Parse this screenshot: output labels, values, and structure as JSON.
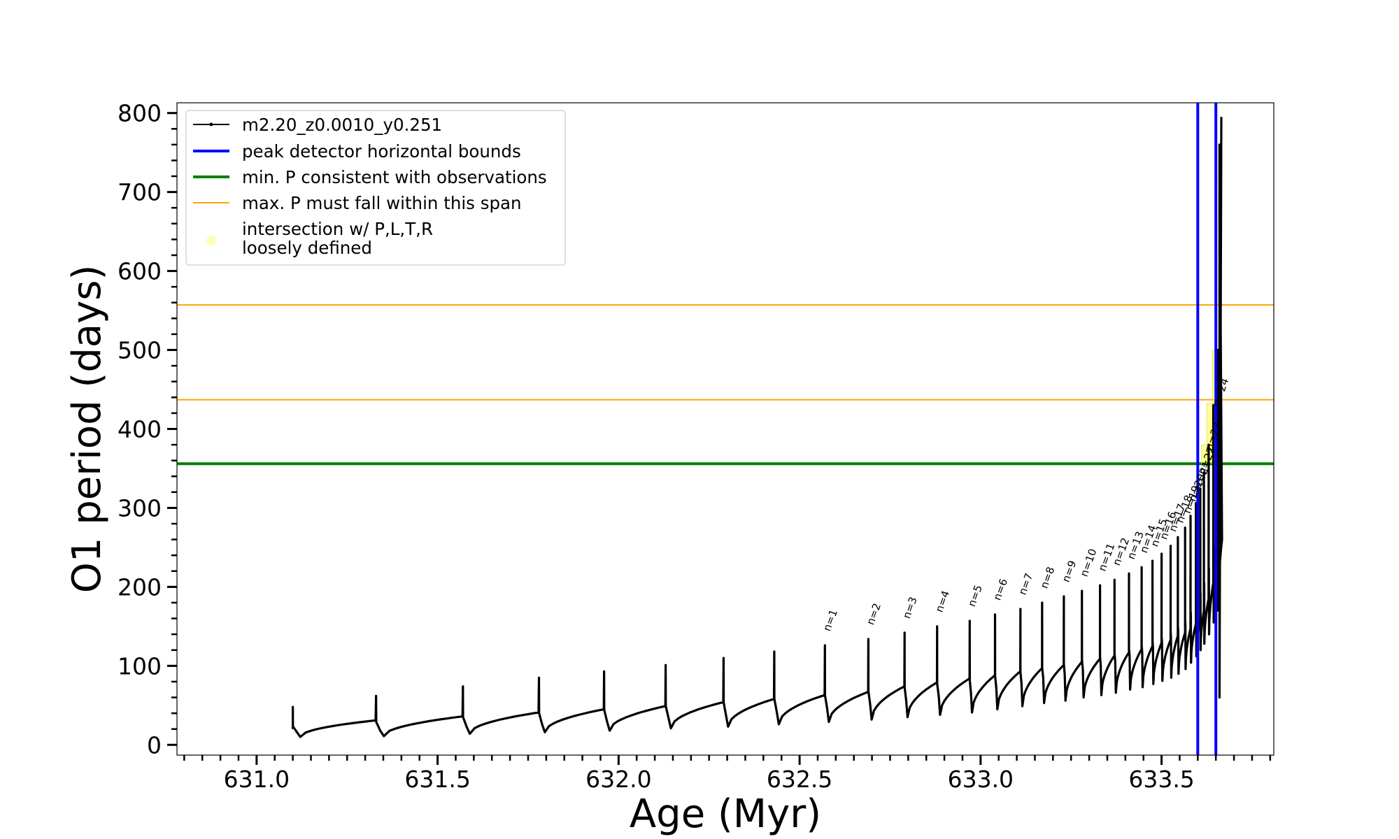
{
  "chart_data": {
    "type": "line",
    "xlabel": "Age (Myr)",
    "ylabel": "O1 period (days)",
    "xlim": [
      630.78,
      633.81
    ],
    "ylim": [
      -13,
      813
    ],
    "xticks": [
      631.0,
      631.5,
      632.0,
      632.5,
      633.0,
      633.5
    ],
    "xtick_labels": [
      "631.0",
      "631.5",
      "632.0",
      "632.5",
      "633.0",
      "633.5"
    ],
    "yticks": [
      0,
      100,
      200,
      300,
      400,
      500,
      600,
      700,
      800
    ],
    "ytick_labels": [
      "0",
      "100",
      "200",
      "300",
      "400",
      "500",
      "600",
      "700",
      "800"
    ],
    "grid": false,
    "legend_position": "top-left",
    "legend": [
      {
        "label": "m2.20_z0.0010_y0.251",
        "color": "#000000",
        "style": "line-marker"
      },
      {
        "label": "peak detector horizontal bounds",
        "color": "#0000ff",
        "style": "line"
      },
      {
        "label": "min. P consistent with observations",
        "color": "#008000",
        "style": "line"
      },
      {
        "label": "max. P must fall within this span",
        "color": "#ffa500",
        "style": "line"
      },
      {
        "label": [
          "intersection w/ P,L,T,R",
          "loosely defined"
        ],
        "color": "#ffff00",
        "style": "marker"
      }
    ],
    "reference_lines": {
      "vertical_blue_age": [
        633.6,
        633.65
      ],
      "horizontal_green_period": 356,
      "horizontal_orange_period": [
        437,
        557
      ]
    },
    "series": [
      {
        "name": "m2.20_z0.0010_y0.251",
        "color": "#000000",
        "pulses": [
          {
            "age": 631.1,
            "peak": 48,
            "min": 10,
            "end": 31
          },
          {
            "age": 631.33,
            "peak": 62,
            "min": 11,
            "end": 36
          },
          {
            "age": 631.57,
            "peak": 74,
            "min": 14,
            "end": 41
          },
          {
            "age": 631.78,
            "peak": 85,
            "min": 16,
            "end": 45
          },
          {
            "age": 631.96,
            "peak": 93,
            "min": 18,
            "end": 49
          },
          {
            "age": 632.13,
            "peak": 101,
            "min": 21,
            "end": 54
          },
          {
            "age": 632.29,
            "peak": 110,
            "min": 23,
            "end": 58
          },
          {
            "age": 632.43,
            "peak": 118,
            "min": 26,
            "end": 63
          },
          {
            "age": 632.57,
            "peak": 126,
            "min": 29,
            "end": 67
          },
          {
            "age": 632.69,
            "peak": 134,
            "min": 32,
            "end": 74
          },
          {
            "age": 632.79,
            "peak": 142,
            "min": 35,
            "end": 79
          },
          {
            "age": 632.88,
            "peak": 150,
            "min": 38,
            "end": 84
          },
          {
            "age": 632.97,
            "peak": 157,
            "min": 41,
            "end": 88
          },
          {
            "age": 633.04,
            "peak": 165,
            "min": 45,
            "end": 93
          },
          {
            "age": 633.11,
            "peak": 172,
            "min": 49,
            "end": 97
          },
          {
            "age": 633.17,
            "peak": 180,
            "min": 53,
            "end": 101
          },
          {
            "age": 633.23,
            "peak": 188,
            "min": 56,
            "end": 105
          },
          {
            "age": 633.28,
            "peak": 195,
            "min": 60,
            "end": 109
          },
          {
            "age": 633.33,
            "peak": 202,
            "min": 63,
            "end": 113
          },
          {
            "age": 633.37,
            "peak": 209,
            "min": 66,
            "end": 117
          },
          {
            "age": 633.41,
            "peak": 217,
            "min": 70,
            "end": 121
          },
          {
            "age": 633.445,
            "peak": 225,
            "min": 73,
            "end": 125
          },
          {
            "age": 633.475,
            "peak": 233,
            "min": 77,
            "end": 129
          },
          {
            "age": 633.5,
            "peak": 242,
            "min": 81,
            "end": 133
          },
          {
            "age": 633.525,
            "peak": 252,
            "min": 85,
            "end": 138
          },
          {
            "age": 633.545,
            "peak": 263,
            "min": 90,
            "end": 142
          },
          {
            "age": 633.565,
            "peak": 275,
            "min": 96,
            "end": 147
          },
          {
            "age": 633.58,
            "peak": 290,
            "min": 104,
            "end": 153
          },
          {
            "age": 633.595,
            "peak": 306,
            "min": 112,
            "end": 160
          },
          {
            "age": 633.607,
            "peak": 324,
            "min": 120,
            "end": 170
          },
          {
            "age": 633.617,
            "peak": 345,
            "min": 128,
            "end": 185
          },
          {
            "age": 633.63,
            "peak": 380,
            "min": 140,
            "end": 205
          },
          {
            "age": 633.643,
            "peak": 430,
            "min": 155,
            "end": 230
          },
          {
            "age": 633.655,
            "peak": 500,
            "min": 170,
            "end": 260
          }
        ],
        "tail": [
          {
            "age": 633.66,
            "period": 760
          },
          {
            "age": 633.66,
            "period": 60
          },
          {
            "age": 633.665,
            "period": 795
          }
        ]
      }
    ],
    "annotations": [
      {
        "text": "n=1",
        "age": 632.57,
        "period": 143
      },
      {
        "text": "n=2",
        "age": 632.69,
        "period": 151
      },
      {
        "text": "n=3",
        "age": 632.79,
        "period": 159
      },
      {
        "text": "n=4",
        "age": 632.88,
        "period": 167
      },
      {
        "text": "n=5",
        "age": 632.97,
        "period": 174
      },
      {
        "text": "n=6",
        "age": 633.04,
        "period": 182
      },
      {
        "text": "n=7",
        "age": 633.11,
        "period": 189
      },
      {
        "text": "n=8",
        "age": 633.17,
        "period": 197
      },
      {
        "text": "n=9",
        "age": 633.23,
        "period": 205
      },
      {
        "text": "n=10",
        "age": 633.28,
        "period": 212
      },
      {
        "text": "n=11",
        "age": 633.33,
        "period": 219
      },
      {
        "text": "n=12",
        "age": 633.37,
        "period": 226
      },
      {
        "text": "n=13",
        "age": 633.41,
        "period": 234
      },
      {
        "text": "n=14",
        "age": 633.445,
        "period": 242
      },
      {
        "text": "n=15",
        "age": 633.475,
        "period": 250
      },
      {
        "text": "n=16",
        "age": 633.5,
        "period": 259
      },
      {
        "text": "n=17",
        "age": 633.525,
        "period": 269
      },
      {
        "text": "n=18",
        "age": 633.545,
        "period": 280
      },
      {
        "text": "n=19",
        "age": 633.565,
        "period": 292
      },
      {
        "text": "n=20",
        "age": 633.58,
        "period": 307
      },
      {
        "text": "n=21",
        "age": 633.595,
        "period": 323
      },
      {
        "text": "n=22",
        "age": 633.607,
        "period": 341
      },
      {
        "text": "n=23",
        "age": 633.625,
        "period": 372
      },
      {
        "text": "n=24",
        "age": 633.645,
        "period": 428
      }
    ],
    "highlights": [
      {
        "age_from": 633.61,
        "age_to": 633.63,
        "period_from": 356,
        "period_to": 380
      },
      {
        "age_from": 633.625,
        "age_to": 633.645,
        "period_from": 356,
        "period_to": 432
      },
      {
        "age_from": 633.64,
        "age_to": 633.655,
        "period_from": 356,
        "period_to": 500
      }
    ]
  }
}
